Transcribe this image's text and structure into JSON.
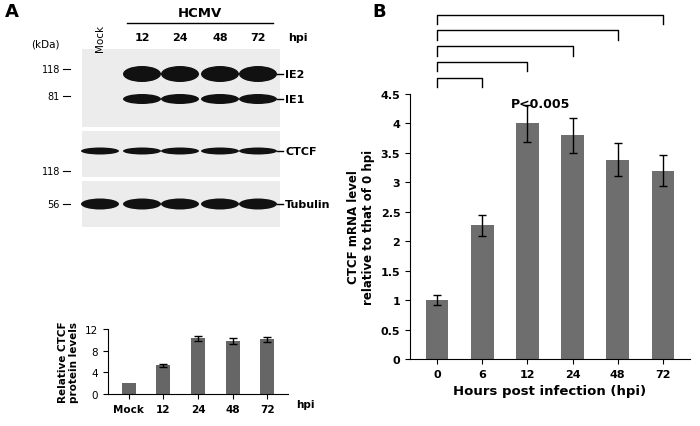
{
  "panel_labels": [
    "A",
    "B"
  ],
  "blot": {
    "kda_label": "(kDa)",
    "group_label": "HCMV",
    "lanes": [
      "Mock",
      "12",
      "24",
      "48",
      "72"
    ],
    "lane_unit": "hpi",
    "panels": [
      {
        "markers": [
          118,
          81
        ],
        "bands": [
          "IE2",
          "IE1"
        ]
      },
      {
        "markers": [
          118
        ],
        "bands": [
          "CTCF"
        ]
      },
      {
        "markers": [
          56
        ],
        "bands": [
          "Tubulin"
        ]
      }
    ]
  },
  "chart_data": [
    {
      "type": "bar",
      "categories": [
        "Mock",
        "12",
        "24",
        "48",
        "72"
      ],
      "values": [
        2.1,
        5.3,
        10.3,
        9.8,
        10.1
      ],
      "errors": [
        null,
        0.3,
        0.5,
        0.5,
        0.5
      ],
      "ylabel": "Relative CTCF\nprotein levels",
      "xlabel": "hpi",
      "ylim": [
        0,
        12
      ],
      "yticks": [
        0,
        4,
        8,
        12
      ],
      "color": "#666666"
    },
    {
      "type": "bar",
      "categories": [
        "0",
        "6",
        "12",
        "24",
        "48",
        "72"
      ],
      "values": [
        1.0,
        2.27,
        4.0,
        3.8,
        3.38,
        3.2
      ],
      "errors": [
        0.08,
        0.18,
        0.32,
        0.3,
        0.28,
        0.27
      ],
      "ylabel": "CTCF mRNA level\nrelative to that of 0 hpi",
      "xlabel": "Hours post infection (hpi)",
      "ylim": [
        0,
        4.5
      ],
      "yticks": [
        0,
        0.5,
        1,
        1.5,
        2,
        2.5,
        3,
        3.5,
        4,
        4.5
      ],
      "color": "#6e6e6e",
      "significance": {
        "label": "P<0.005",
        "pairs": [
          [
            "0",
            "6"
          ],
          [
            "0",
            "12"
          ],
          [
            "0",
            "24"
          ],
          [
            "0",
            "48"
          ],
          [
            "0",
            "72"
          ]
        ]
      }
    }
  ]
}
